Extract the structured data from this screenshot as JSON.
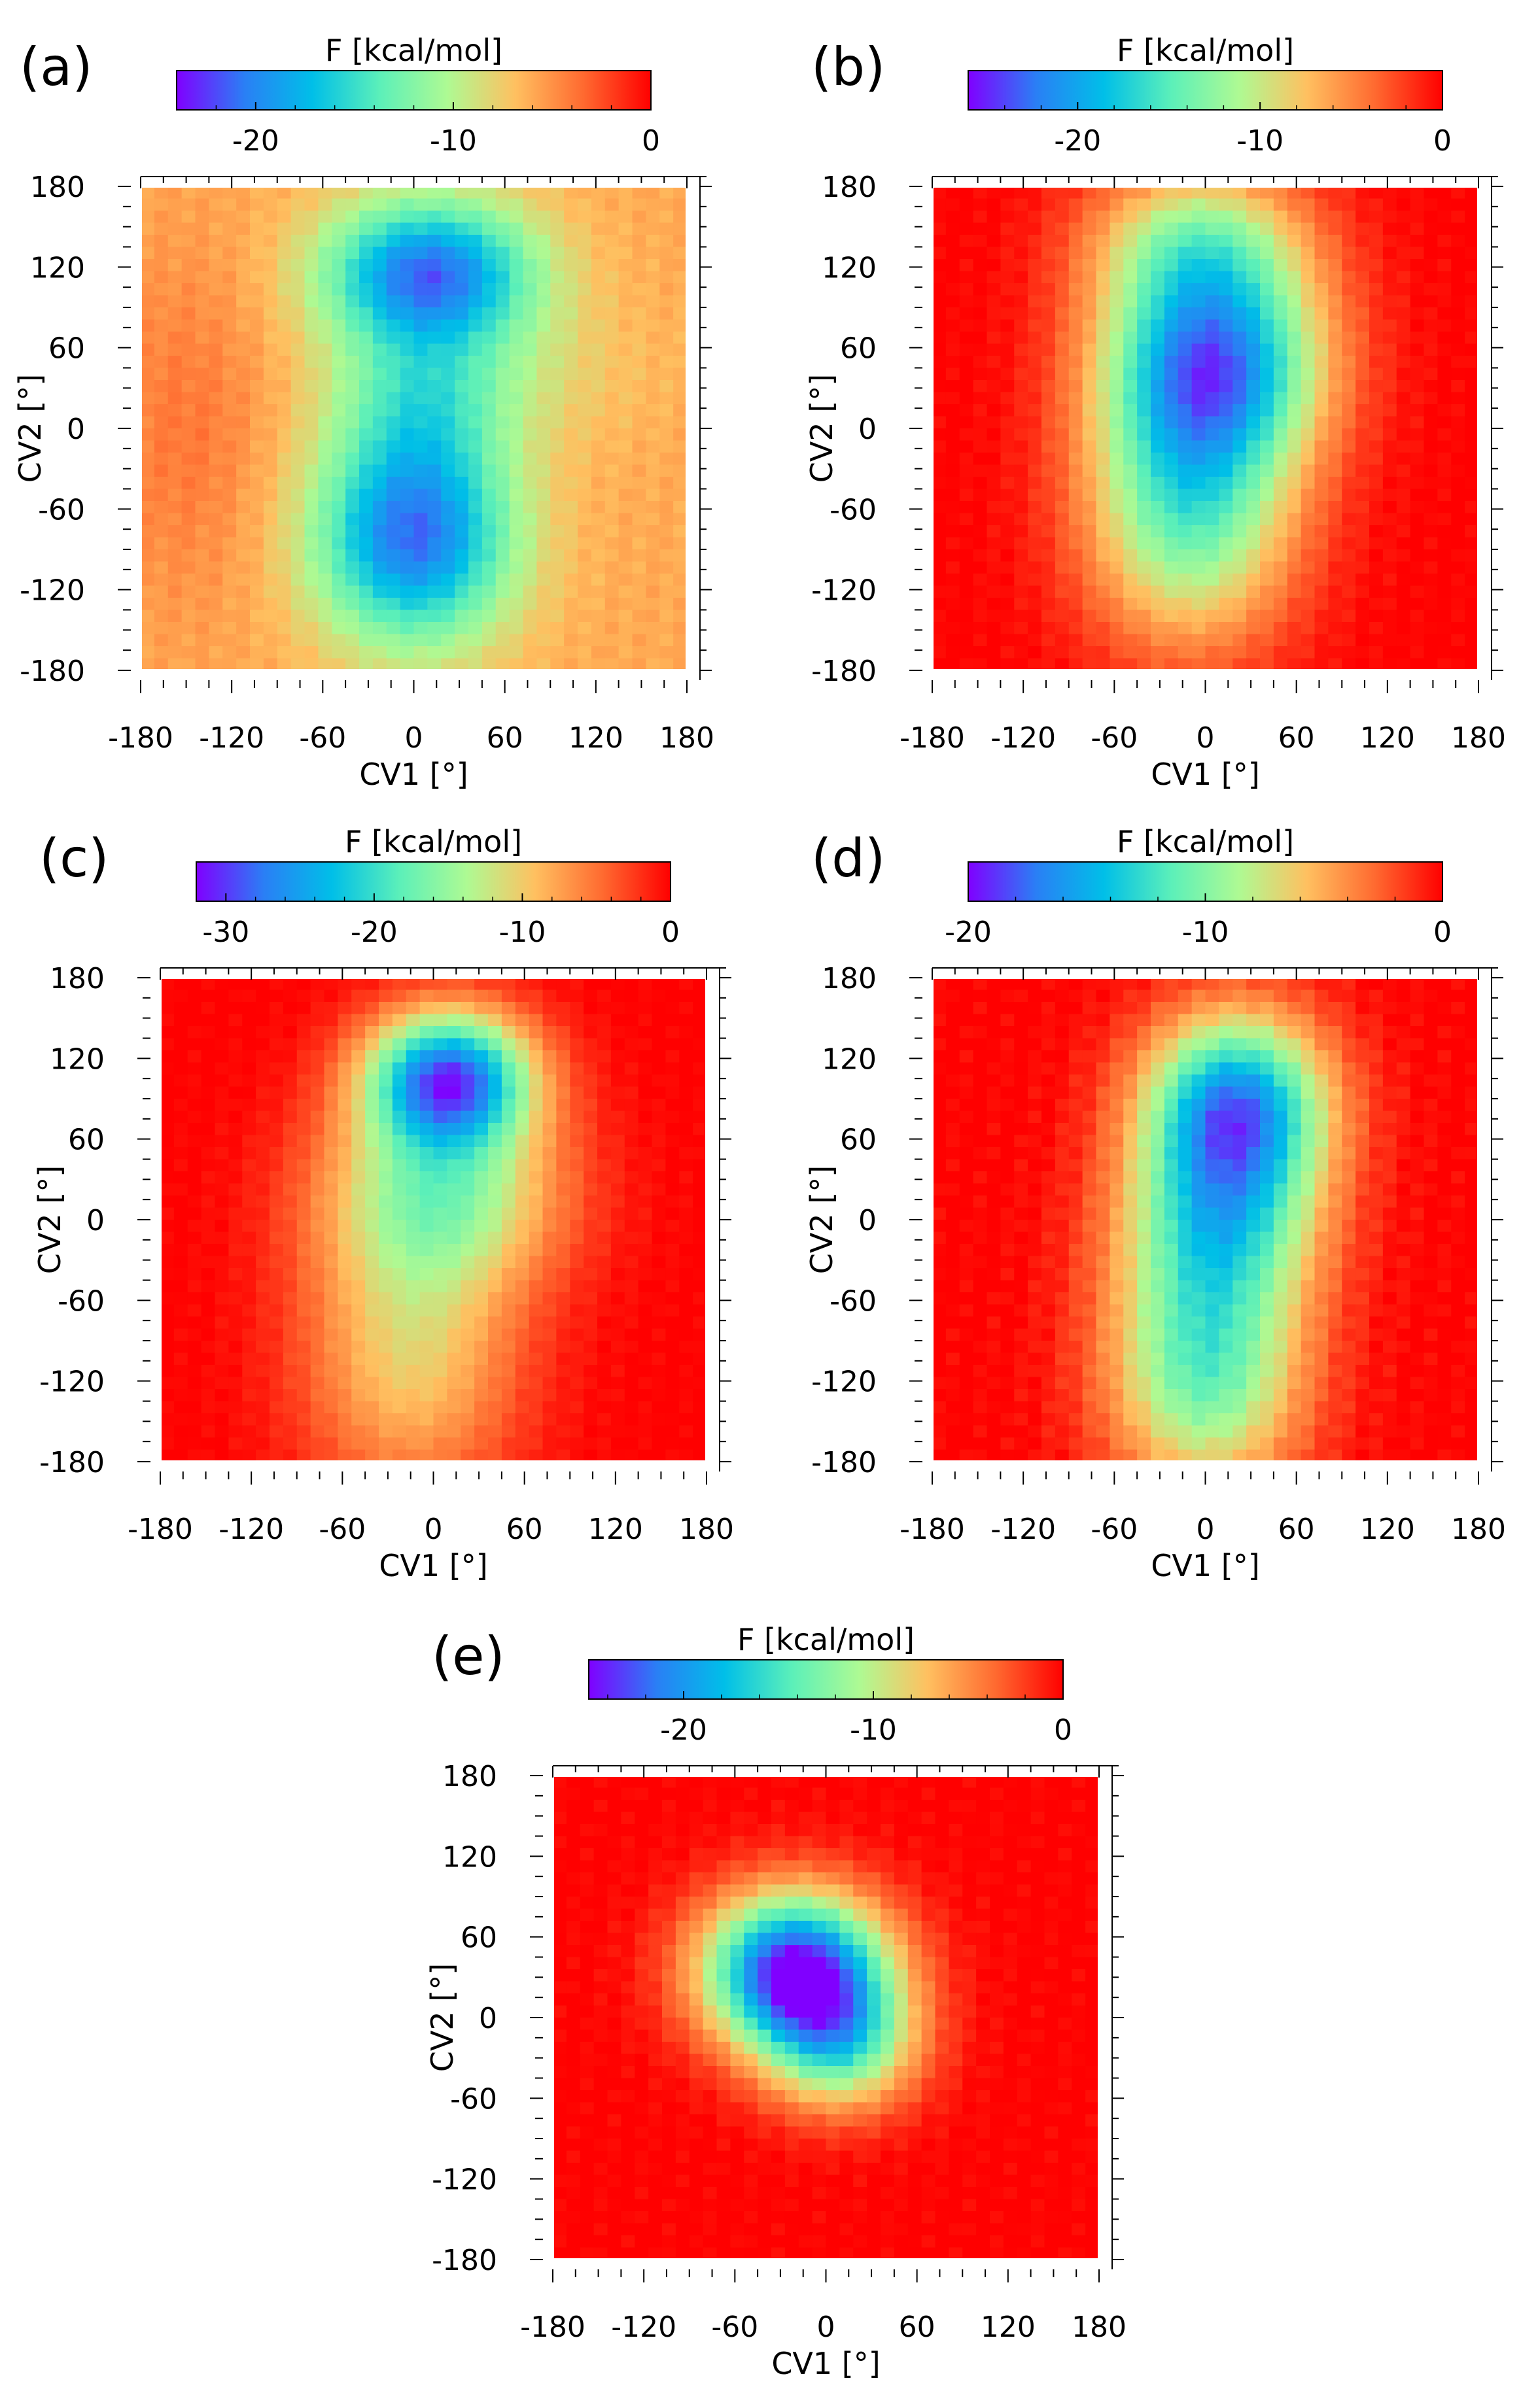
{
  "figure": {
    "colormap_name": "rainbow",
    "colormap_stops": [
      "#8000ff",
      "#2a7ff5",
      "#00bfe8",
      "#5cf0b9",
      "#aefa93",
      "#ffc060",
      "#ff6a30",
      "#ff0000"
    ]
  },
  "chart_data": [
    {
      "type": "heatmap",
      "panel_label": "(a)",
      "colorbar_title": "F [kcal/mol]",
      "colorbar_range": [
        -24,
        0
      ],
      "colorbar_ticks": [
        -20,
        -10,
        0
      ],
      "colorbar_tick_labels": [
        "-20",
        "-10",
        "0"
      ],
      "xlabel": "CV1 [°]",
      "ylabel": "CV2 [°]",
      "xlim": [
        -180,
        180
      ],
      "ylim": [
        -180,
        180
      ],
      "xticks": [
        -180,
        -120,
        -60,
        0,
        60,
        120,
        180
      ],
      "xtick_labels": [
        "-180",
        "-120",
        "-60",
        "0",
        "60",
        "120",
        "180"
      ],
      "yticks": [
        180,
        120,
        60,
        0,
        -60,
        -120,
        -180
      ],
      "ytick_labels": [
        "180",
        "120",
        "60",
        "0",
        "-60",
        "-120",
        "-180"
      ],
      "background_value": -6,
      "basins": [
        {
          "cv1": 10,
          "cv2": 115,
          "sx": 48,
          "sy": 38,
          "depth": -15
        },
        {
          "cv1": 0,
          "cv2": -80,
          "sx": 45,
          "sy": 55,
          "depth": -15
        },
        {
          "cv1": 5,
          "cv2": 20,
          "sx": 40,
          "sy": 40,
          "depth": -5
        },
        {
          "cv1": 50,
          "cv2": 40,
          "sx": 70,
          "sy": 40,
          "depth": -2
        },
        {
          "cv1": -150,
          "cv2": 0,
          "sx": 40,
          "sy": 90,
          "depth": 2
        }
      ]
    },
    {
      "type": "heatmap",
      "panel_label": "(b)",
      "colorbar_title": "F [kcal/mol]",
      "colorbar_range": [
        -26,
        0
      ],
      "colorbar_ticks": [
        -20,
        -10,
        0
      ],
      "colorbar_tick_labels": [
        "-20",
        "-10",
        "0"
      ],
      "xlabel": "CV1 [°]",
      "ylabel": "CV2 [°]",
      "xlim": [
        -180,
        180
      ],
      "ylim": [
        -180,
        180
      ],
      "xticks": [
        -180,
        -120,
        -60,
        0,
        60,
        120,
        180
      ],
      "xtick_labels": [
        "-180",
        "-120",
        "-60",
        "0",
        "60",
        "120",
        "180"
      ],
      "yticks": [
        180,
        120,
        60,
        0,
        -60,
        -120,
        -180
      ],
      "ytick_labels": [
        "180",
        "120",
        "60",
        "0",
        "-60",
        "-120",
        "-180"
      ],
      "background_value": 0,
      "basins": [
        {
          "cv1": 5,
          "cv2": 50,
          "sx": 50,
          "sy": 55,
          "depth": -20
        },
        {
          "cv1": -10,
          "cv2": -60,
          "sx": 48,
          "sy": 70,
          "depth": -14
        },
        {
          "cv1": -5,
          "cv2": 140,
          "sx": 50,
          "sy": 40,
          "depth": -10
        }
      ]
    },
    {
      "type": "heatmap",
      "panel_label": "(c)",
      "colorbar_title": "F [kcal/mol]",
      "colorbar_range": [
        -32,
        0
      ],
      "colorbar_ticks": [
        -30,
        -20,
        -10,
        0
      ],
      "colorbar_tick_labels": [
        "-30",
        "-20",
        "-10",
        "0"
      ],
      "xlabel": "CV1 [°]",
      "ylabel": "CV2 [°]",
      "xlim": [
        -180,
        180
      ],
      "ylim": [
        -180,
        180
      ],
      "xticks": [
        -180,
        -120,
        -60,
        0,
        60,
        120,
        180
      ],
      "xtick_labels": [
        "-180",
        "-120",
        "-60",
        "0",
        "60",
        "120",
        "180"
      ],
      "yticks": [
        180,
        120,
        60,
        0,
        -60,
        -120,
        -180
      ],
      "ytick_labels": [
        "180",
        "120",
        "60",
        "0",
        "-60",
        "-120",
        "-180"
      ],
      "background_value": 0,
      "basins": [
        {
          "cv1": 10,
          "cv2": 105,
          "sx": 38,
          "sy": 35,
          "depth": -28
        },
        {
          "cv1": 5,
          "cv2": 20,
          "sx": 55,
          "sy": 50,
          "depth": -14
        },
        {
          "cv1": -15,
          "cv2": -100,
          "sx": 50,
          "sy": 75,
          "depth": -10
        }
      ]
    },
    {
      "type": "heatmap",
      "panel_label": "(d)",
      "colorbar_title": "F [kcal/mol]",
      "colorbar_range": [
        -20,
        0
      ],
      "colorbar_ticks": [
        -20,
        -10,
        0
      ],
      "colorbar_tick_labels": [
        "-20",
        "-10",
        "0"
      ],
      "xlabel": "CV1 [°]",
      "ylabel": "CV2 [°]",
      "xlim": [
        -180,
        180
      ],
      "ylim": [
        -180,
        180
      ],
      "xticks": [
        -180,
        -120,
        -60,
        0,
        60,
        120,
        180
      ],
      "xtick_labels": [
        "-180",
        "-120",
        "-60",
        "0",
        "60",
        "120",
        "180"
      ],
      "yticks": [
        180,
        120,
        60,
        0,
        -60,
        -120,
        -180
      ],
      "ytick_labels": [
        "180",
        "120",
        "60",
        "0",
        "-60",
        "-120",
        "-180"
      ],
      "background_value": 0,
      "basins": [
        {
          "cv1": 20,
          "cv2": 85,
          "sx": 42,
          "sy": 48,
          "depth": -16
        },
        {
          "cv1": 10,
          "cv2": 0,
          "sx": 45,
          "sy": 50,
          "depth": -10
        },
        {
          "cv1": 0,
          "cv2": -110,
          "sx": 45,
          "sy": 65,
          "depth": -11
        }
      ]
    },
    {
      "type": "heatmap",
      "panel_label": "(e)",
      "colorbar_title": "F [kcal/mol]",
      "colorbar_range": [
        -25,
        0
      ],
      "colorbar_ticks": [
        -20,
        -10,
        0
      ],
      "colorbar_tick_labels": [
        "-20",
        "-10",
        "0"
      ],
      "xlabel": "CV1 [°]",
      "ylabel": "CV2 [°]",
      "xlim": [
        -180,
        180
      ],
      "ylim": [
        -180,
        180
      ],
      "xticks": [
        -180,
        -120,
        -60,
        0,
        60,
        120,
        180
      ],
      "xtick_labels": [
        "-180",
        "-120",
        "-60",
        "0",
        "60",
        "120",
        "180"
      ],
      "yticks": [
        180,
        120,
        60,
        0,
        -60,
        -120,
        -180
      ],
      "ytick_labels": [
        "180",
        "120",
        "60",
        "0",
        "-60",
        "-120",
        "-180"
      ],
      "background_value": 0,
      "basins": [
        {
          "cv1": -20,
          "cv2": 35,
          "sx": 42,
          "sy": 40,
          "depth": -25
        },
        {
          "cv1": 10,
          "cv2": -20,
          "sx": 35,
          "sy": 35,
          "depth": -12
        }
      ]
    }
  ]
}
